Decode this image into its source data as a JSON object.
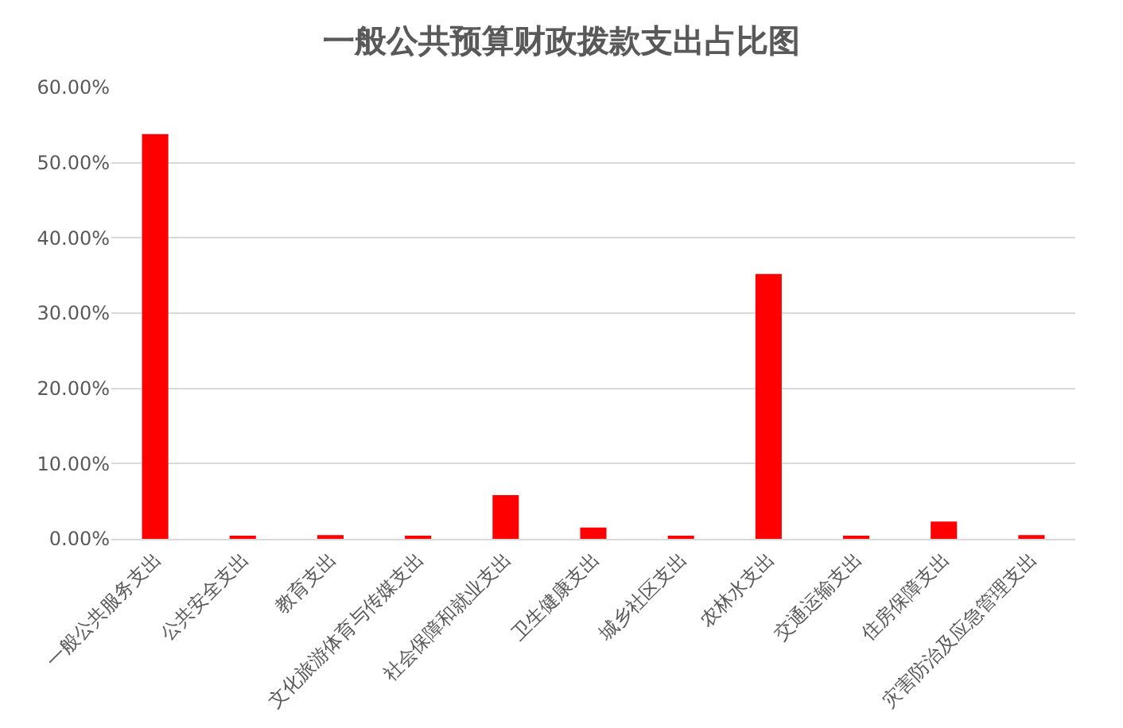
{
  "chart_data": {
    "type": "bar",
    "title": "一般公共预算财政拨款支出占比图",
    "categories": [
      "一般公共服务支出",
      "公共安全支出",
      "教育支出",
      "文化旅游体育与传媒支出",
      "社会保障和就业支出",
      "卫生健康支出",
      "城乡社区支出",
      "农林水支出",
      "交通运输支出",
      "住房保障支出",
      "灾害防治及应急管理支出"
    ],
    "values": [
      53.8,
      0.25,
      0.5,
      0.25,
      5.8,
      1.5,
      0.25,
      35.2,
      0.25,
      2.3,
      0.5
    ],
    "color": "#ff0000",
    "ylim": [
      0,
      60
    ],
    "yticks": [
      {
        "value": 0,
        "label": "0.00%"
      },
      {
        "value": 10,
        "label": "10.00%"
      },
      {
        "value": 20,
        "label": "20.00%"
      },
      {
        "value": 30,
        "label": "30.00%"
      },
      {
        "value": 40,
        "label": "40.00%"
      },
      {
        "value": 50,
        "label": "50.00%"
      },
      {
        "value": 60,
        "label": "60.00%"
      }
    ],
    "grid": "y",
    "legend": false
  }
}
